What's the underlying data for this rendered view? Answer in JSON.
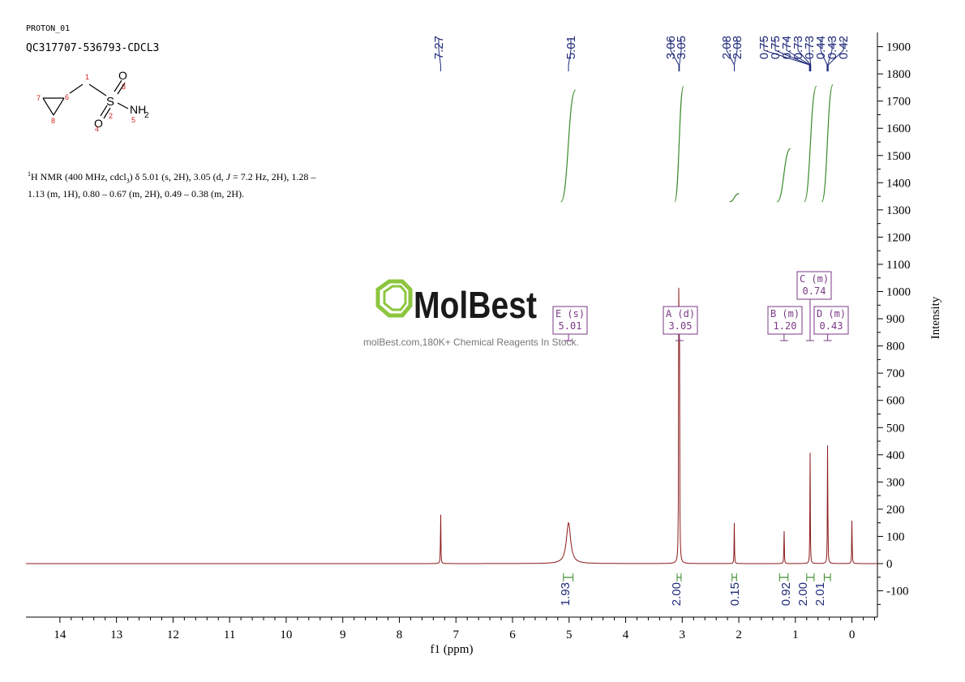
{
  "header": {
    "experiment": "PROTON_01",
    "sample": "QC317707-536793-CDCL3"
  },
  "description": {
    "nucleus_sup": "1",
    "p1": "H NMR (400 MHz, cdcl",
    "sub3": "3",
    "p2": ") δ 5.01 (s, 2H), 3.05 (d, ",
    "J": "J",
    "p3": " = 7.2 Hz, 2H), 1.28 – 1.13 (m, 1H), 0.80 – 0.67 (m, 2H), 0.49 – 0.38 (m, 2H)."
  },
  "molecule": {
    "s": "S",
    "o_top": "O",
    "o_bottom": "O",
    "nh": "NH",
    "nh_sub": "2",
    "num_1": "1",
    "num_2": "2",
    "num_3": "3",
    "num_4": "4",
    "num_5": "5",
    "num_6": "6",
    "num_7": "7",
    "num_8": "8"
  },
  "watermark": {
    "brand": "MolBest",
    "tagline": "molBest.com,180K+ Chemical Reagents In Stock."
  },
  "colors": {
    "spectrum": "#8b1a1a",
    "integral": "#3a8a2a",
    "peak_label": "#1f2a7a",
    "multiplet_box": "#7a3a86",
    "logo_green": "#8cc63f"
  },
  "chart_data": {
    "type": "line",
    "xlabel": "f1 (ppm)",
    "ylabel": "Intensity",
    "xlim": [
      14.6,
      -0.45
    ],
    "ylim": [
      -200,
      1960
    ],
    "x_ticks": [
      "14",
      "13",
      "12",
      "11",
      "10",
      "9",
      "8",
      "7",
      "6",
      "5",
      "4",
      "3",
      "2",
      "1",
      "0"
    ],
    "y_ticks": [
      "1900",
      "1800",
      "1700",
      "1600",
      "1500",
      "1400",
      "1300",
      "1200",
      "1100",
      "1000",
      "900",
      "800",
      "700",
      "600",
      "500",
      "400",
      "300",
      "200",
      "100",
      "0",
      "-100"
    ],
    "peak_labels": [
      "7.27",
      "5.01",
      "3.06",
      "3.05",
      "2.08",
      "2.08",
      "0.75",
      "0.75",
      "0.74",
      "0.73",
      "0.73",
      "0.44",
      "0.43",
      "0.42"
    ],
    "peaks": [
      {
        "ppm": 7.27,
        "height": 205
      },
      {
        "ppm": 5.01,
        "height": 150,
        "width": 0.045
      },
      {
        "ppm": 3.06,
        "height": 1060
      },
      {
        "ppm": 3.05,
        "height": 1050
      },
      {
        "ppm": 2.08,
        "height": 150
      },
      {
        "ppm": 1.2,
        "height": 140
      },
      {
        "ppm": 0.74,
        "height": 410
      },
      {
        "ppm": 0.43,
        "height": 495
      },
      {
        "ppm": 0.0,
        "height": 180
      }
    ],
    "integrals": [
      {
        "label": "1.93",
        "ppm": 5.01,
        "from": 5.1,
        "to": 4.93
      },
      {
        "label": "2.00",
        "ppm": 3.05,
        "from": 3.09,
        "to": 3.02
      },
      {
        "label": "0.15",
        "ppm": 2.08,
        "from": 2.12,
        "to": 2.04
      },
      {
        "label": "0.92",
        "ppm": 1.2,
        "from": 1.28,
        "to": 1.13
      },
      {
        "label": "2.00",
        "ppm": 0.74,
        "from": 0.8,
        "to": 0.67
      },
      {
        "label": "2.01",
        "ppm": 0.43,
        "from": 0.49,
        "to": 0.38
      }
    ],
    "multiplets": [
      {
        "id": "E (s)",
        "shift": "5.01",
        "ppm": 5.01
      },
      {
        "id": "A (d)",
        "shift": "3.05",
        "ppm": 3.05
      },
      {
        "id": "B (m)",
        "shift": "1.20",
        "ppm": 1.2
      },
      {
        "id": "C (m)",
        "shift": "0.74",
        "ppm": 0.74
      },
      {
        "id": "D (m)",
        "shift": "0.43",
        "ppm": 0.43
      }
    ]
  }
}
